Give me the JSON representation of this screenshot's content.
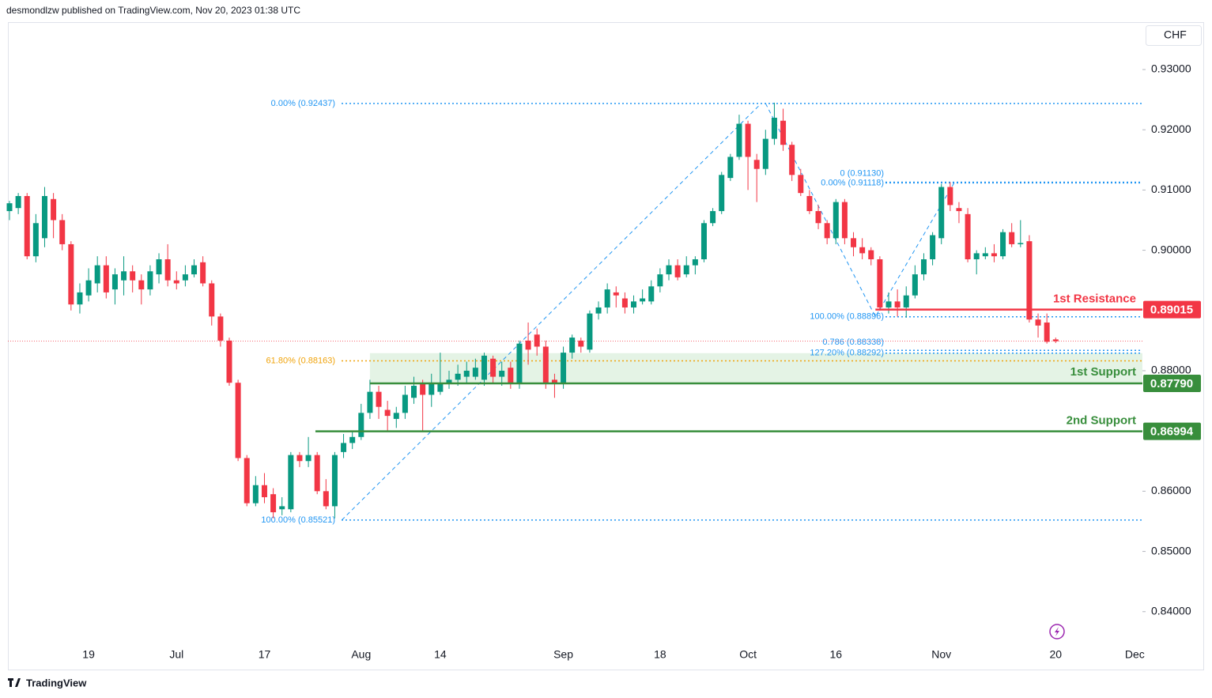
{
  "chart_data": {
    "type": "candlestick",
    "header": "desmondlzw published on TradingView.com, Nov 20, 2023 01:38 UTC",
    "currency": "CHF",
    "footer": "TradingView",
    "up_color": "#089981",
    "down_color": "#f23645",
    "categories": [
      null,
      null,
      null,
      null,
      null,
      null,
      null,
      null,
      null,
      "19",
      null,
      null,
      null,
      null,
      null,
      null,
      null,
      null,
      null,
      "Jul",
      null,
      null,
      null,
      null,
      null,
      null,
      null,
      null,
      null,
      "17",
      null,
      null,
      null,
      null,
      null,
      null,
      null,
      null,
      null,
      null,
      "Aug",
      null,
      null,
      null,
      null,
      null,
      null,
      null,
      null,
      "14",
      null,
      null,
      null,
      null,
      null,
      null,
      null,
      null,
      null,
      null,
      null,
      null,
      null,
      "Sep",
      null,
      null,
      null,
      null,
      null,
      null,
      null,
      null,
      null,
      null,
      "18",
      null,
      null,
      null,
      null,
      null,
      null,
      null,
      null,
      null,
      "Oct",
      null,
      null,
      null,
      null,
      null,
      null,
      null,
      null,
      null,
      "16",
      null,
      null,
      null,
      null,
      null,
      null,
      null,
      null,
      null,
      null,
      null,
      "Nov",
      null,
      null,
      null,
      null,
      null,
      null,
      null,
      null,
      null,
      null,
      null,
      null,
      "20",
      null,
      null,
      null,
      null,
      null,
      null,
      null,
      null,
      "Dec"
    ],
    "open": [
      0.9065,
      0.907,
      0.909,
      0.899,
      0.902,
      0.9085,
      0.905,
      0.901,
      0.891,
      0.8925,
      0.8945,
      0.8975,
      0.8935,
      0.895,
      0.8965,
      0.895,
      0.8935,
      0.896,
      0.8985,
      0.895,
      0.895,
      0.896,
      0.898,
      0.8945,
      0.889,
      0.885,
      0.878,
      0.8655,
      0.858,
      0.861,
      0.8595,
      0.857,
      0.857,
      0.866,
      0.865,
      0.866,
      0.86,
      0.8575,
      0.8665,
      0.868,
      0.869,
      0.873,
      0.8765,
      0.8735,
      0.872,
      0.873,
      0.8755,
      0.878,
      0.876,
      0.8765,
      0.878,
      0.8785,
      0.879,
      0.879,
      0.8785,
      0.882,
      0.879,
      0.8805,
      0.878,
      0.885,
      0.886,
      0.884,
      0.8785,
      0.878,
      0.883,
      0.885,
      0.8835,
      0.8895,
      0.8905,
      0.893,
      0.892,
      0.8905,
      0.8915,
      0.8915,
      0.894,
      0.896,
      0.8975,
      0.896,
      0.8975,
      0.8985,
      0.9045,
      0.9065,
      0.912,
      0.9155,
      0.921,
      0.915,
      0.9135,
      0.9185,
      0.9215,
      0.9175,
      0.9125,
      0.909,
      0.9065,
      0.9045,
      0.902,
      0.908,
      0.902,
      0.9005,
      0.9,
      0.8985,
      0.8905,
      0.8915,
      0.8905,
      0.8925,
      0.896,
      0.8985,
      0.902,
      0.9105,
      0.907,
      0.906,
      0.8985,
      0.899,
      0.8995,
      0.899,
      0.903,
      0.901,
      0.9015,
      0.8885,
      0.888,
      0.8852,
      null,
      null,
      null,
      null,
      null,
      null,
      null,
      null,
      null
    ],
    "high": [
      0.9082,
      0.9095,
      0.9095,
      0.906,
      0.9105,
      0.9095,
      0.906,
      0.9015,
      0.8945,
      0.897,
      0.899,
      0.899,
      0.897,
      0.899,
      0.8975,
      0.896,
      0.8975,
      0.8995,
      0.901,
      0.8965,
      0.8975,
      0.8985,
      0.899,
      0.895,
      0.8895,
      0.8855,
      0.8785,
      0.866,
      0.8625,
      0.863,
      0.8605,
      0.859,
      0.8665,
      0.8665,
      0.869,
      0.8665,
      0.862,
      0.8665,
      0.8695,
      0.87,
      0.8745,
      0.8785,
      0.8775,
      0.875,
      0.874,
      0.8775,
      0.879,
      0.8785,
      0.8795,
      0.883,
      0.88,
      0.881,
      0.8815,
      0.882,
      0.883,
      0.8825,
      0.8815,
      0.8815,
      0.885,
      0.888,
      0.887,
      0.885,
      0.8795,
      0.884,
      0.886,
      0.8855,
      0.89,
      0.8915,
      0.8945,
      0.894,
      0.893,
      0.8925,
      0.8935,
      0.895,
      0.897,
      0.8985,
      0.8985,
      0.899,
      0.899,
      0.905,
      0.907,
      0.913,
      0.916,
      0.9225,
      0.9215,
      0.916,
      0.92,
      0.9245,
      0.9235,
      0.918,
      0.9135,
      0.91,
      0.9075,
      0.905,
      0.9085,
      0.9085,
      0.903,
      0.902,
      0.9005,
      0.899,
      0.893,
      0.8935,
      0.894,
      0.8975,
      0.8995,
      0.903,
      0.911,
      0.9113,
      0.908,
      0.907,
      0.9,
      0.9005,
      0.901,
      0.9035,
      0.9045,
      0.905,
      0.9025,
      0.8895,
      0.8895,
      0.8855,
      null,
      null,
      null,
      null,
      null,
      null,
      null,
      null,
      null
    ],
    "low": [
      0.905,
      0.906,
      0.8985,
      0.898,
      0.9005,
      0.902,
      0.9,
      0.89,
      0.8895,
      0.8915,
      0.893,
      0.892,
      0.891,
      0.8925,
      0.893,
      0.891,
      0.8925,
      0.8945,
      0.894,
      0.8935,
      0.894,
      0.8955,
      0.894,
      0.8875,
      0.884,
      0.8775,
      0.865,
      0.8575,
      0.8575,
      0.858,
      0.8555,
      0.856,
      0.8565,
      0.864,
      0.864,
      0.8595,
      0.857,
      0.8555,
      0.8655,
      0.867,
      0.8685,
      0.872,
      0.872,
      0.87,
      0.8705,
      0.872,
      0.8745,
      0.87,
      0.874,
      0.876,
      0.877,
      0.8775,
      0.878,
      0.8785,
      0.8775,
      0.878,
      0.8775,
      0.877,
      0.877,
      0.881,
      0.8825,
      0.877,
      0.8755,
      0.877,
      0.882,
      0.883,
      0.883,
      0.8885,
      0.8895,
      0.8905,
      0.8895,
      0.8895,
      0.891,
      0.891,
      0.893,
      0.895,
      0.895,
      0.8955,
      0.896,
      0.898,
      0.904,
      0.906,
      0.9115,
      0.915,
      0.91,
      0.908,
      0.9125,
      0.9175,
      0.9165,
      0.9115,
      0.909,
      0.906,
      0.9035,
      0.901,
      0.901,
      0.901,
      0.899,
      0.8985,
      0.8975,
      0.89,
      0.8895,
      0.889,
      0.8888,
      0.892,
      0.895,
      0.8975,
      0.901,
      0.9065,
      0.9045,
      0.898,
      0.896,
      0.8985,
      0.898,
      0.8985,
      0.9005,
      0.9005,
      0.888,
      0.8855,
      0.8845,
      0.8846,
      null,
      null,
      null,
      null,
      null,
      null,
      null,
      null,
      null
    ],
    "close": [
      0.9078,
      0.909,
      0.899,
      0.9045,
      0.909,
      0.905,
      0.901,
      0.891,
      0.893,
      0.895,
      0.8975,
      0.893,
      0.896,
      0.8965,
      0.895,
      0.8935,
      0.8965,
      0.8985,
      0.895,
      0.8945,
      0.896,
      0.8975,
      0.8945,
      0.889,
      0.885,
      0.878,
      0.8655,
      0.858,
      0.861,
      0.859,
      0.8565,
      0.8575,
      0.866,
      0.865,
      0.866,
      0.86,
      0.8575,
      0.866,
      0.868,
      0.869,
      0.873,
      0.8765,
      0.874,
      0.8725,
      0.873,
      0.876,
      0.8775,
      0.876,
      0.878,
      0.878,
      0.8785,
      0.8795,
      0.88,
      0.8805,
      0.8825,
      0.879,
      0.88,
      0.878,
      0.8845,
      0.8835,
      0.884,
      0.878,
      0.878,
      0.883,
      0.8855,
      0.884,
      0.8895,
      0.8905,
      0.8935,
      0.8925,
      0.8905,
      0.8915,
      0.892,
      0.894,
      0.896,
      0.8975,
      0.8955,
      0.8975,
      0.8985,
      0.9045,
      0.9065,
      0.9125,
      0.9155,
      0.921,
      0.9155,
      0.9135,
      0.9185,
      0.922,
      0.9175,
      0.9125,
      0.9095,
      0.9065,
      0.9045,
      0.902,
      0.908,
      0.902,
      0.9005,
      0.8995,
      0.8985,
      0.8905,
      0.8915,
      0.8905,
      0.8925,
      0.896,
      0.8985,
      0.9025,
      0.9105,
      0.9075,
      0.9065,
      0.8985,
      0.8995,
      0.8995,
      0.899,
      0.903,
      0.901,
      0.9012,
      0.8885,
      0.8875,
      0.8848,
      0.8849,
      null,
      null,
      null,
      null,
      null,
      null,
      null,
      null,
      null
    ],
    "ylim": [
      0.83459,
      0.93787
    ],
    "yticks": [
      {
        "value": 0.93,
        "label": "0.93000"
      },
      {
        "value": 0.92,
        "label": "0.92000"
      },
      {
        "value": 0.91,
        "label": "0.91000"
      },
      {
        "value": 0.9,
        "label": "0.90000"
      },
      {
        "value": 0.88,
        "label": "0.88000"
      },
      {
        "value": 0.86,
        "label": "0.86000"
      },
      {
        "value": 0.85,
        "label": "0.85000"
      },
      {
        "value": 0.84,
        "label": "0.84000"
      }
    ],
    "levels": [
      {
        "label": "1st Resistance",
        "value": 0.89015,
        "value_label": "0.89015",
        "color": "#f23645"
      },
      {
        "label": "1st Support",
        "value": 0.8779,
        "value_label": "0.87790",
        "color": "#388e3c"
      },
      {
        "label": "2nd Support",
        "value": 0.86994,
        "value_label": "0.86994",
        "color": "#388e3c"
      }
    ],
    "fib_a": {
      "color": "#2196f3",
      "levels": [
        {
          "label": "0.00% (0.92437)",
          "value": 0.92437
        },
        {
          "label": "61.80% (0.88163)",
          "value": 0.88163,
          "color": "#f0a30a"
        },
        {
          "label": "100.00% (0.85521)",
          "value": 0.85521
        }
      ]
    },
    "fib_b": {
      "color": "#2196f3",
      "levels": [
        {
          "label": "0 (0.91130)",
          "value": 0.9113
        },
        {
          "label": "0.00% (0.91118)",
          "value": 0.91118
        },
        {
          "label": "100.00% (0.88896)",
          "value": 0.88896
        },
        {
          "label": "0.786 (0.88338)",
          "value": 0.88338
        },
        {
          "label": "127.20% (0.88292)",
          "value": 0.88292
        }
      ]
    }
  }
}
